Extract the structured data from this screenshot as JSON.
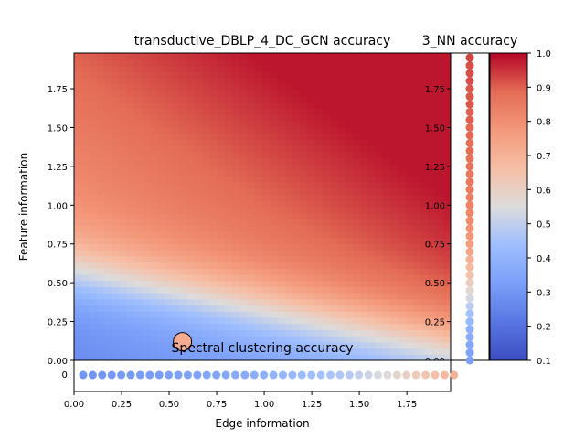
{
  "chart_data": [
    {
      "type": "heatmap",
      "title": "transductive_DBLP_4_DC_GCN accuracy",
      "xlabel": "Edge information",
      "ylabel": "Feature information",
      "xlim": [
        0.0,
        1.98
      ],
      "ylim": [
        0.0,
        1.98
      ],
      "x_ticks": [
        "0.00",
        "0.25",
        "0.50",
        "0.75",
        "1.00",
        "1.25",
        "1.50",
        "1.75"
      ],
      "y_ticks": [
        "0.00",
        "0.25",
        "0.50",
        "0.75",
        "1.00",
        "1.25",
        "1.50",
        "1.75"
      ],
      "colormap": "coolwarm",
      "value_model": "accuracy increases with both edge and feature information; ~0.25 at origin, ~0.97 at top-right",
      "marker": {
        "x": 0.57,
        "y": 0.12,
        "value": 0.72
      }
    },
    {
      "type": "scatter",
      "title": "3_NN accuracy",
      "orientation": "vertical strip",
      "y_ticks": [
        "0.00",
        "0.25",
        "0.50",
        "0.75",
        "1.00",
        "1.25",
        "1.50",
        "1.75"
      ],
      "y": [
        0.0,
        0.05,
        0.1,
        0.15,
        0.2,
        0.25,
        0.3,
        0.35,
        0.4,
        0.45,
        0.5,
        0.55,
        0.6,
        0.65,
        0.7,
        0.75,
        0.8,
        0.85,
        0.9,
        0.95,
        1.0,
        1.05,
        1.1,
        1.15,
        1.2,
        1.25,
        1.3,
        1.35,
        1.4,
        1.45,
        1.5,
        1.55,
        1.6,
        1.65,
        1.7,
        1.75,
        1.8,
        1.85,
        1.9,
        1.95
      ],
      "values": [
        0.33,
        0.34,
        0.35,
        0.37,
        0.39,
        0.42,
        0.45,
        0.49,
        0.53,
        0.57,
        0.61,
        0.65,
        0.68,
        0.71,
        0.74,
        0.76,
        0.78,
        0.79,
        0.81,
        0.82,
        0.83,
        0.84,
        0.85,
        0.86,
        0.86,
        0.87,
        0.87,
        0.88,
        0.88,
        0.89,
        0.89,
        0.9,
        0.9,
        0.91,
        0.91,
        0.91,
        0.92,
        0.92,
        0.92,
        0.93
      ]
    },
    {
      "type": "scatter",
      "title": "Spectral clustering accuracy",
      "orientation": "horizontal strip",
      "y_tick_label": "0.",
      "x": [
        0.0,
        0.05,
        0.1,
        0.15,
        0.2,
        0.25,
        0.3,
        0.35,
        0.4,
        0.45,
        0.5,
        0.55,
        0.6,
        0.65,
        0.7,
        0.75,
        0.8,
        0.85,
        0.9,
        0.95,
        1.0,
        1.05,
        1.1,
        1.15,
        1.2,
        1.25,
        1.3,
        1.35,
        1.4,
        1.45,
        1.5,
        1.55,
        1.6,
        1.65,
        1.7,
        1.75,
        1.8,
        1.85,
        1.9,
        1.95
      ],
      "values": [
        0.3,
        0.3,
        0.3,
        0.31,
        0.31,
        0.31,
        0.32,
        0.32,
        0.32,
        0.33,
        0.33,
        0.34,
        0.34,
        0.35,
        0.35,
        0.36,
        0.37,
        0.37,
        0.38,
        0.39,
        0.4,
        0.41,
        0.42,
        0.43,
        0.44,
        0.45,
        0.46,
        0.47,
        0.48,
        0.5,
        0.52,
        0.54,
        0.56,
        0.58,
        0.6,
        0.62,
        0.64,
        0.66,
        0.68,
        0.7
      ]
    },
    {
      "type": "colorbar",
      "colormap": "coolwarm",
      "range": [
        0.1,
        1.0
      ],
      "ticks": [
        "0.1",
        "0.2",
        "0.3",
        "0.4",
        "0.5",
        "0.6",
        "0.7",
        "0.8",
        "0.9",
        "1.0"
      ]
    }
  ]
}
